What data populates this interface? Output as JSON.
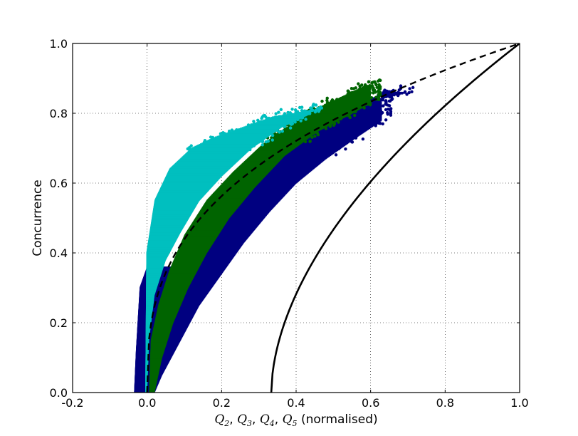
{
  "chart_data": {
    "type": "scatter",
    "xlabel": "Q2, Q3, Q4, Q5 (normalised)",
    "xlabel_parts": {
      "q2": "Q",
      "s2": "2",
      "q3": "Q",
      "s3": "3",
      "q4": "Q",
      "s4": "4",
      "q5": "Q",
      "s5": "5",
      "suffix": " (normalised)"
    },
    "ylabel": "Concurrence",
    "xlim": [
      -0.2,
      1.0
    ],
    "ylim": [
      0.0,
      1.0
    ],
    "xticks": [
      "-0.2",
      "0.0",
      "0.2",
      "0.4",
      "0.6",
      "0.8",
      "1.0"
    ],
    "yticks": [
      "0.0",
      "0.2",
      "0.4",
      "0.6",
      "0.8",
      "1.0"
    ],
    "grid": true,
    "series": [
      {
        "color": "#000080",
        "style": "scatter-band",
        "lower": [
          [
            0.02,
            0.0
          ],
          [
            0.04,
            0.05
          ],
          [
            0.07,
            0.11
          ],
          [
            0.1,
            0.17
          ],
          [
            0.14,
            0.25
          ],
          [
            0.2,
            0.34
          ],
          [
            0.26,
            0.43
          ],
          [
            0.33,
            0.52
          ],
          [
            0.4,
            0.6
          ],
          [
            0.48,
            0.67
          ],
          [
            0.56,
            0.73
          ],
          [
            0.63,
            0.78
          ]
        ],
        "upper": [
          [
            -0.035,
            0.0
          ],
          [
            -0.03,
            0.12
          ],
          [
            -0.02,
            0.3
          ],
          [
            0.0,
            0.36
          ],
          [
            0.04,
            0.28
          ],
          [
            0.1,
            0.38
          ],
          [
            0.16,
            0.48
          ],
          [
            0.22,
            0.56
          ],
          [
            0.3,
            0.64
          ],
          [
            0.38,
            0.71
          ],
          [
            0.46,
            0.77
          ],
          [
            0.54,
            0.81
          ],
          [
            0.62,
            0.84
          ],
          [
            0.7,
            0.86
          ]
        ]
      },
      {
        "color": "#006400",
        "style": "scatter-band",
        "lower": [
          [
            0.02,
            0.0
          ],
          [
            0.04,
            0.1
          ],
          [
            0.07,
            0.2
          ],
          [
            0.11,
            0.3
          ],
          [
            0.16,
            0.4
          ],
          [
            0.22,
            0.5
          ],
          [
            0.29,
            0.59
          ],
          [
            0.37,
            0.68
          ],
          [
            0.46,
            0.75
          ],
          [
            0.55,
            0.8
          ],
          [
            0.6,
            0.83
          ]
        ],
        "upper": [
          [
            0.005,
            0.0
          ],
          [
            0.01,
            0.15
          ],
          [
            0.03,
            0.25
          ],
          [
            0.06,
            0.35
          ],
          [
            0.1,
            0.45
          ],
          [
            0.16,
            0.55
          ],
          [
            0.23,
            0.63
          ],
          [
            0.31,
            0.71
          ],
          [
            0.39,
            0.77
          ],
          [
            0.47,
            0.82
          ],
          [
            0.55,
            0.86
          ],
          [
            0.59,
            0.88
          ]
        ]
      },
      {
        "color": "#00bfbf",
        "style": "scatter-band",
        "lower": [
          [
            0.0,
            0.0
          ],
          [
            0.005,
            0.15
          ],
          [
            0.02,
            0.28
          ],
          [
            0.05,
            0.38
          ],
          [
            0.09,
            0.46
          ],
          [
            0.14,
            0.55
          ],
          [
            0.2,
            0.62
          ],
          [
            0.28,
            0.7
          ],
          [
            0.36,
            0.76
          ],
          [
            0.44,
            0.8
          ]
        ],
        "upper": [
          [
            -0.005,
            0.0
          ],
          [
            -0.002,
            0.4
          ],
          [
            0.02,
            0.55
          ],
          [
            0.06,
            0.64
          ],
          [
            0.12,
            0.7
          ],
          [
            0.18,
            0.73
          ],
          [
            0.26,
            0.76
          ],
          [
            0.34,
            0.79
          ],
          [
            0.4,
            0.8
          ],
          [
            0.46,
            0.81
          ]
        ]
      },
      {
        "color": "#000000",
        "style": "dashed",
        "function": "x^(1/3)-like",
        "x_range": [
          0.0,
          1.0
        ]
      },
      {
        "color": "#000000",
        "style": "solid",
        "function": "from (1/3, 0) to (1, 1)",
        "x_range": [
          0.3333,
          1.0
        ]
      }
    ]
  }
}
